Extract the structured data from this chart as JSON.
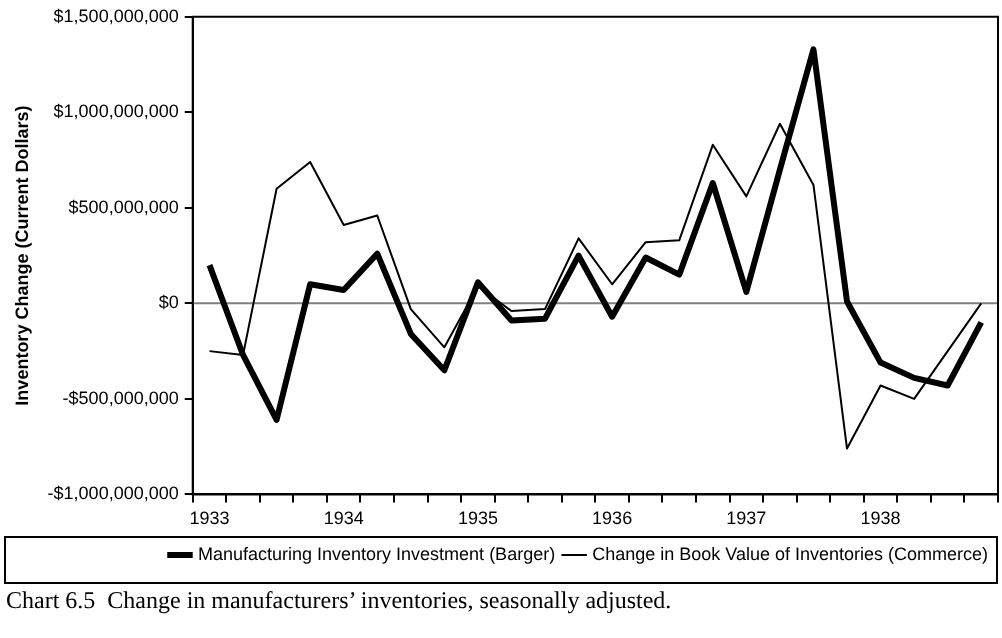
{
  "chart_data": {
    "type": "line",
    "ylabel": "Inventory Change (Current Dollars)",
    "categories": [
      "1933",
      null,
      null,
      null,
      "1934",
      null,
      null,
      null,
      "1935",
      null,
      null,
      null,
      "1936",
      null,
      null,
      null,
      "1937",
      null,
      null,
      null,
      "1938",
      null,
      null,
      null
    ],
    "series": [
      {
        "name": "Manufacturing Inventory Investment (Barger)",
        "color": "#000000",
        "values": [
          200000000,
          -270000000,
          -610000000,
          100000000,
          70000000,
          260000000,
          -160000000,
          -350000000,
          110000000,
          -90000000,
          -80000000,
          250000000,
          -70000000,
          240000000,
          150000000,
          630000000,
          60000000,
          700000000,
          1330000000,
          10000000,
          -310000000,
          -390000000,
          -430000000,
          -100000000
        ]
      },
      {
        "name": "Change in Book Value of Inventories (Commerce)",
        "color": "#000000",
        "values": [
          -250000000,
          -270000000,
          600000000,
          740000000,
          410000000,
          460000000,
          -30000000,
          -230000000,
          90000000,
          -40000000,
          -30000000,
          340000000,
          100000000,
          320000000,
          330000000,
          830000000,
          560000000,
          940000000,
          620000000,
          -760000000,
          -430000000,
          -500000000,
          -250000000,
          0
        ]
      }
    ],
    "ylim": [
      -1000000000,
      1500000000
    ],
    "yticks": [
      {
        "value": -1000000000,
        "label": "-$1,000,000,000"
      },
      {
        "value": -500000000,
        "label": "-$500,000,000"
      },
      {
        "value": 0,
        "label": "$0"
      },
      {
        "value": 500000000,
        "label": "$500,000,000"
      },
      {
        "value": 1000000000,
        "label": "$1,000,000,000"
      },
      {
        "value": 1500000000,
        "label": "$1,500,000,000"
      }
    ],
    "ref_lines": [
      {
        "axis": "y",
        "value": 0,
        "color": "#808080"
      }
    ],
    "grid": false,
    "legend": "bottom",
    "marker": "none",
    "line_style": "solid",
    "annotations": [
      "Chart 6.5  Change in manufacturers’ inventories, seasonally adjusted."
    ]
  }
}
